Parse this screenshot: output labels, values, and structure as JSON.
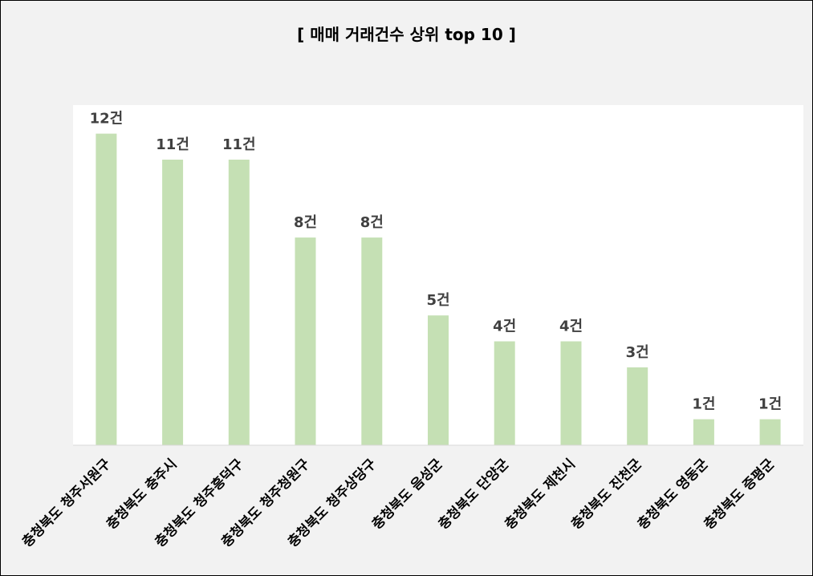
{
  "chart_data": {
    "type": "bar",
    "title": "[ 매매 거래건수 상위 top 10 ]",
    "xlabel": "",
    "ylabel": "",
    "categories": [
      "충청북도 청주서원구",
      "충청북도 충주시",
      "충청북도 청주흥덕구",
      "충청북도 청주청원구",
      "충청북도 청주상당구",
      "충청북도 음성군",
      "충청북도 단양군",
      "충청북도 제천시",
      "충청북도 진천군",
      "충청북도 영동군",
      "충청북도 증평군"
    ],
    "values": [
      12,
      11,
      11,
      8,
      8,
      5,
      4,
      4,
      3,
      1,
      1
    ],
    "value_labels": [
      "12건",
      "11건",
      "11건",
      "8건",
      "8건",
      "5건",
      "4건",
      "4건",
      "3건",
      "1건",
      "1건"
    ],
    "ylim": [
      0,
      13.1
    ],
    "grid": false,
    "legend": "none",
    "bar_color": "#c5e0b4",
    "plot_background": "#ffffff",
    "chart_background": "#f2f2f2",
    "axis_color": "#d9d9d9"
  }
}
